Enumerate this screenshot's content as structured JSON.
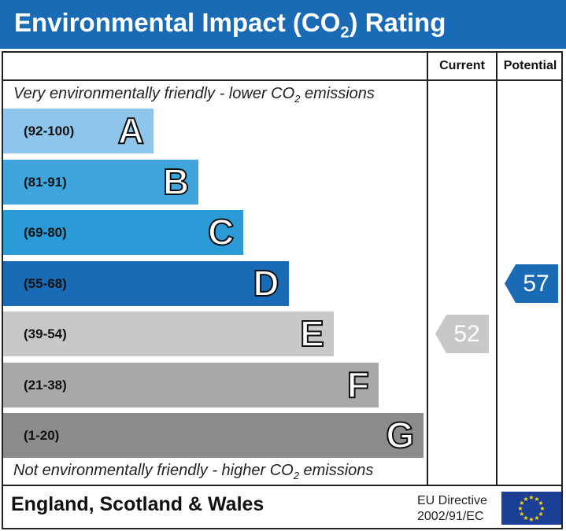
{
  "header": {
    "title_pre": "Environmental Impact (CO",
    "title_sub": "2",
    "title_post": ") Rating"
  },
  "columns": {
    "current": "Current",
    "potential": "Potential"
  },
  "notes": {
    "top_pre": "Very environmentally friendly - lower CO",
    "top_sub": "2",
    "top_post": " emissions",
    "bottom_pre": "Not environmentally friendly - higher CO",
    "bottom_sub": "2",
    "bottom_post": " emissions"
  },
  "chart_data": {
    "type": "bar",
    "title": "Environmental Impact (CO2) Rating",
    "bands": [
      {
        "letter": "A",
        "range": "(92-100)",
        "color": "#8dc6ea"
      },
      {
        "letter": "B",
        "range": "(81-91)",
        "color": "#3ea6dd"
      },
      {
        "letter": "C",
        "range": "(69-80)",
        "color": "#2a9bd6"
      },
      {
        "letter": "D",
        "range": "(55-68)",
        "color": "#1a6bb5"
      },
      {
        "letter": "E",
        "range": "(39-54)",
        "color": "#c8c8c8"
      },
      {
        "letter": "F",
        "range": "(21-38)",
        "color": "#a9a9a9"
      },
      {
        "letter": "G",
        "range": "(1-20)",
        "color": "#8c8c8c"
      }
    ],
    "current": {
      "value": "52",
      "band": "E",
      "color": "#c8c8c8"
    },
    "potential": {
      "value": "57",
      "band": "D",
      "color": "#1a6bb5"
    }
  },
  "footer": {
    "region": "England, Scotland & Wales",
    "directive_line1": "EU Directive",
    "directive_line2": "2002/91/EC"
  }
}
